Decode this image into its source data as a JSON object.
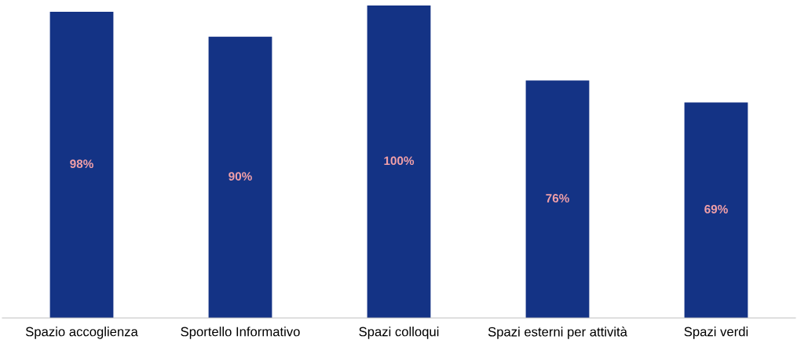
{
  "chart_data": {
    "type": "bar",
    "categories": [
      "Spazio accoglienza",
      "Sportello Informativo",
      "Spazi colloqui",
      "Spazi esterni per attività",
      "Spazi verdi"
    ],
    "values": [
      98,
      90,
      100,
      76,
      69
    ],
    "value_labels": [
      "98%",
      "90%",
      "100%",
      "76%",
      "69%"
    ],
    "color": "#143385",
    "grid": false,
    "legend": false
  }
}
